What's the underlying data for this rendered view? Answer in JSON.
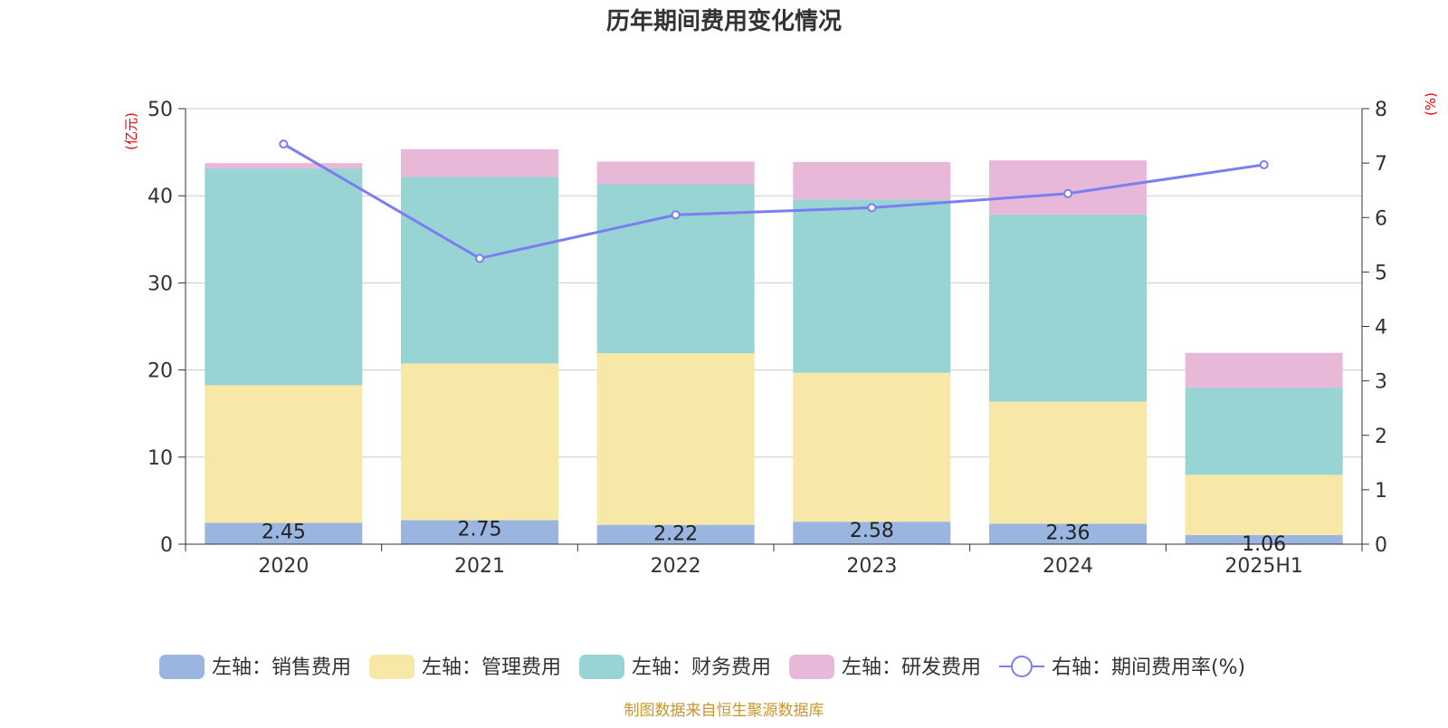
{
  "chart_data": {
    "type": "bar",
    "title": "历年期间费用变化情况",
    "categories": [
      "2020",
      "2021",
      "2022",
      "2023",
      "2024",
      "2025H1"
    ],
    "y_left": {
      "label": "(亿元)",
      "range": [
        0,
        50
      ],
      "ticks": [
        0,
        10,
        20,
        30,
        40,
        50
      ]
    },
    "y_right": {
      "label": "(%)",
      "range": [
        0,
        8
      ],
      "ticks": [
        0,
        1,
        2,
        3,
        4,
        5,
        6,
        7,
        8
      ]
    },
    "stacked": true,
    "grid": true,
    "legend_position": "bottom",
    "series": [
      {
        "name": "左轴：销售费用",
        "type": "bar",
        "axis": "left",
        "color": "#9ab6e0",
        "values": [
          2.45,
          2.75,
          2.22,
          2.58,
          2.36,
          1.06
        ],
        "show_labels": true
      },
      {
        "name": "左轴：管理费用",
        "type": "bar",
        "axis": "left",
        "color": "#f8e8a8",
        "values": [
          15.8,
          18.0,
          19.7,
          17.1,
          14.0,
          6.9
        ]
      },
      {
        "name": "左轴：财务费用",
        "type": "bar",
        "axis": "left",
        "color": "#98d4d4",
        "values": [
          24.9,
          21.4,
          19.4,
          19.9,
          21.5,
          10.0
        ]
      },
      {
        "name": "左轴：研发费用",
        "type": "bar",
        "axis": "left",
        "color": "#e8b8d8",
        "values": [
          0.6,
          3.2,
          2.6,
          4.3,
          6.2,
          4.0
        ]
      },
      {
        "name": "右轴：期间费用率(%)",
        "type": "line",
        "axis": "right",
        "color": "#7b7ef0",
        "values": [
          7.35,
          5.25,
          6.05,
          6.18,
          6.44,
          6.97
        ]
      }
    ],
    "source": "制图数据来自恒生聚源数据库"
  }
}
